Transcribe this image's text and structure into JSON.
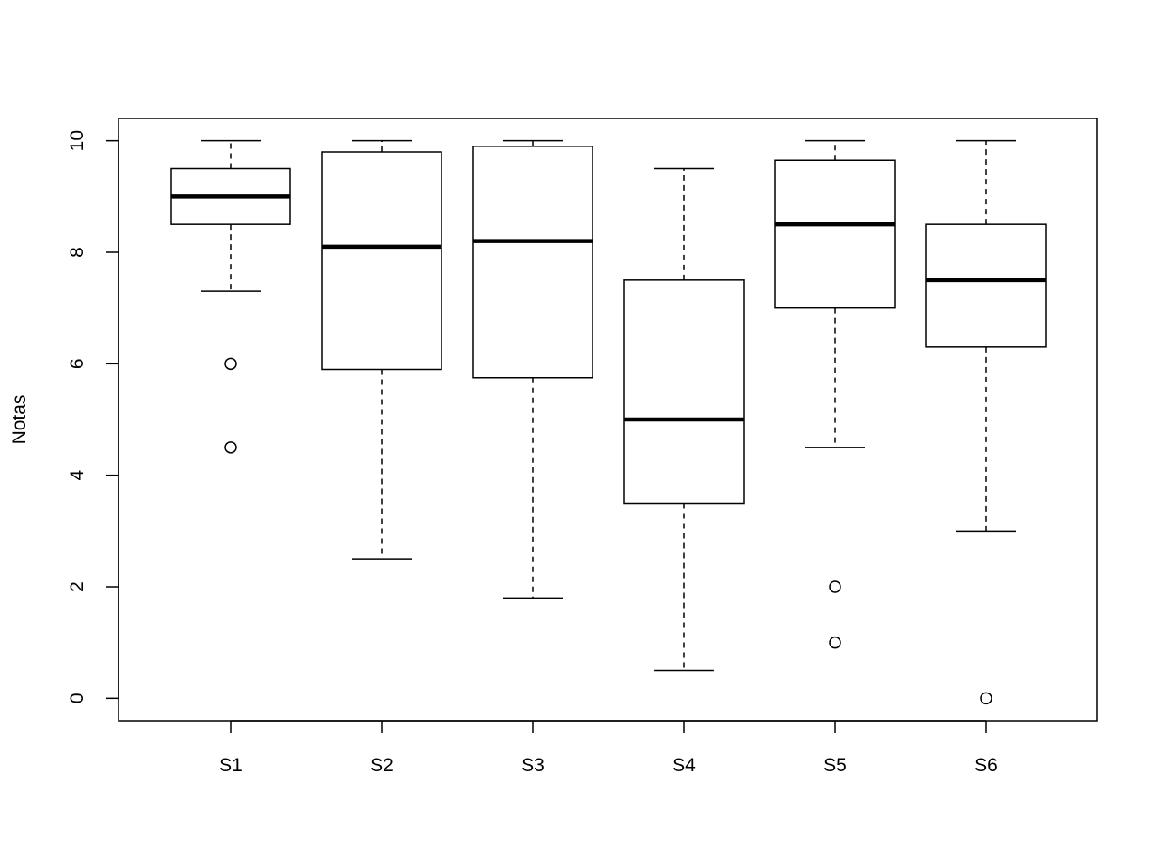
{
  "chart_data": {
    "type": "boxplot",
    "title": "",
    "xlabel": "",
    "ylabel": "Notas",
    "ylim": [
      -0.4,
      10.4
    ],
    "yticks": [
      "0",
      "2",
      "4",
      "6",
      "8",
      "10"
    ],
    "categories": [
      "S1",
      "S2",
      "S3",
      "S4",
      "S5",
      "S6"
    ],
    "boxes": [
      {
        "label": "S1",
        "whisker_low": 7.3,
        "q1": 8.5,
        "median": 9.0,
        "q3": 9.5,
        "whisker_high": 10.0,
        "outliers": [
          6.0,
          4.5
        ]
      },
      {
        "label": "S2",
        "whisker_low": 2.5,
        "q1": 5.9,
        "median": 8.1,
        "q3": 9.8,
        "whisker_high": 10.0,
        "outliers": []
      },
      {
        "label": "S3",
        "whisker_low": 1.8,
        "q1": 5.75,
        "median": 8.2,
        "q3": 9.9,
        "whisker_high": 10.0,
        "outliers": []
      },
      {
        "label": "S4",
        "whisker_low": 0.5,
        "q1": 3.5,
        "median": 5.0,
        "q3": 7.5,
        "whisker_high": 9.5,
        "outliers": []
      },
      {
        "label": "S5",
        "whisker_low": 4.5,
        "q1": 7.0,
        "median": 8.5,
        "q3": 9.65,
        "whisker_high": 10.0,
        "outliers": [
          2.0,
          1.0
        ]
      },
      {
        "label": "S6",
        "whisker_low": 3.0,
        "q1": 6.3,
        "median": 7.5,
        "q3": 8.5,
        "whisker_high": 10.0,
        "outliers": [
          0.0
        ]
      }
    ],
    "grid": false,
    "legend": "none",
    "colors": {
      "stroke": "#000000",
      "fill": "#ffffff"
    }
  }
}
